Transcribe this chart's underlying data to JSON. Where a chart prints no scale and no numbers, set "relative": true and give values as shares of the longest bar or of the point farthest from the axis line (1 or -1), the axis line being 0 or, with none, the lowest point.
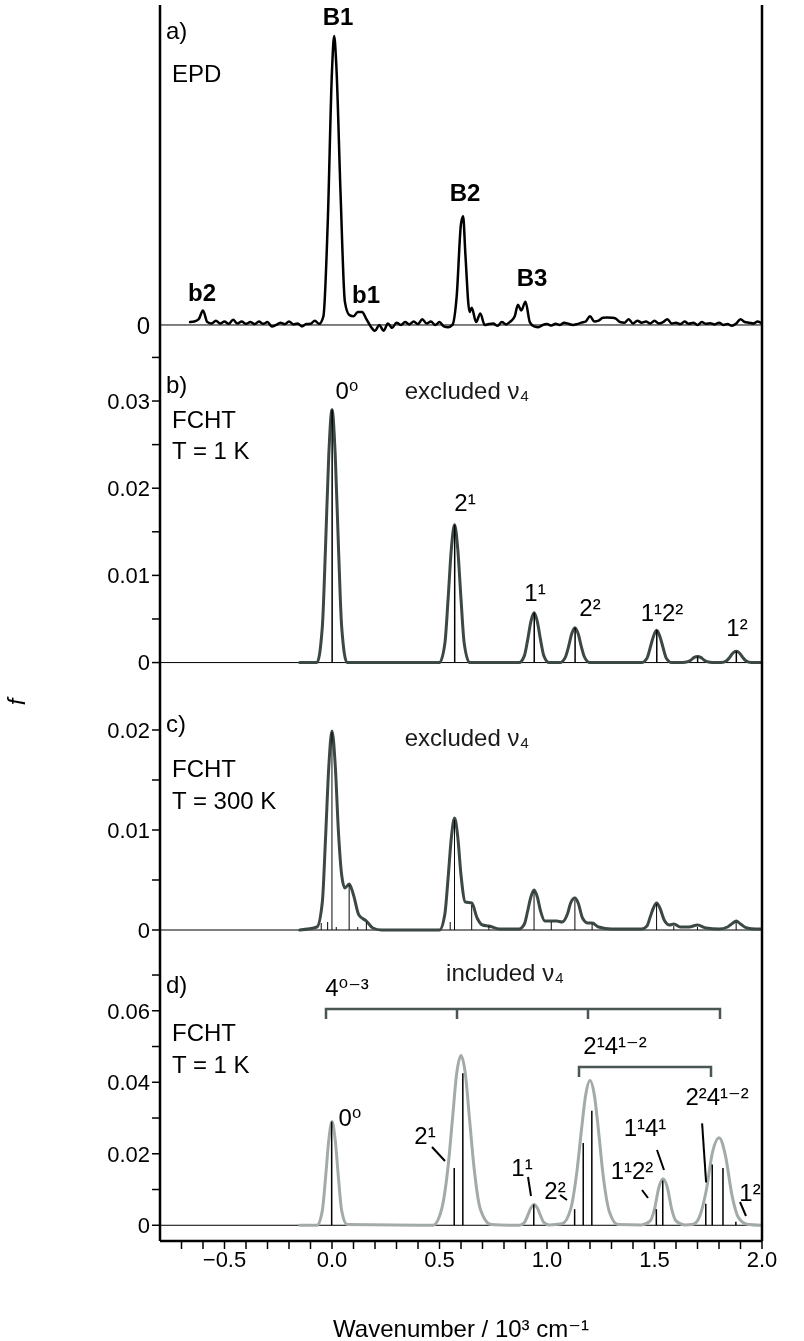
{
  "chart_data": [
    {
      "type": "line",
      "relative": true,
      "xlim": [
        -0.8,
        2.0
      ],
      "tick_labels": false,
      "annotations": [
        "a)",
        "EPD",
        "0",
        "B1",
        "B2",
        "B3",
        "b2",
        "b1"
      ],
      "ref_lines": [
        {
          "axis": "y",
          "value": 0
        }
      ],
      "series": [
        {
          "color": "#000000",
          "x": [
            -0.66,
            -0.64,
            -0.62,
            -0.6,
            -0.58,
            -0.56,
            -0.54,
            -0.52,
            -0.5,
            -0.48,
            -0.46,
            -0.44,
            -0.42,
            -0.4,
            -0.38,
            -0.36,
            -0.34,
            -0.32,
            -0.3,
            -0.28,
            -0.26,
            -0.24,
            -0.22,
            -0.2,
            -0.18,
            -0.16,
            -0.14,
            -0.12,
            -0.1,
            -0.08,
            -0.06,
            -0.04,
            -0.02,
            0,
            0.01,
            0.02,
            0.04,
            0.06,
            0.08,
            0.1,
            0.12,
            0.14,
            0.16,
            0.18,
            0.2,
            0.22,
            0.24,
            0.26,
            0.28,
            0.3,
            0.32,
            0.34,
            0.36,
            0.38,
            0.4,
            0.42,
            0.44,
            0.46,
            0.48,
            0.5,
            0.52,
            0.54,
            0.56,
            0.58,
            0.6,
            0.61,
            0.62,
            0.64,
            0.65,
            0.67,
            0.69,
            0.71,
            0.73,
            0.75,
            0.77,
            0.79,
            0.81,
            0.83,
            0.85,
            0.865,
            0.88,
            0.9,
            0.92,
            0.94,
            0.96,
            0.98,
            1.0,
            1.02,
            1.04,
            1.06,
            1.08,
            1.1,
            1.12,
            1.14,
            1.16,
            1.18,
            1.2,
            1.22,
            1.24,
            1.26,
            1.28,
            1.3,
            1.32,
            1.34,
            1.36,
            1.38,
            1.4,
            1.42,
            1.44,
            1.46,
            1.48,
            1.5,
            1.52,
            1.54,
            1.56,
            1.58,
            1.6,
            1.62,
            1.64,
            1.66,
            1.68,
            1.7,
            1.72,
            1.74,
            1.76,
            1.78,
            1.8,
            1.82,
            1.84,
            1.86,
            1.88,
            1.9,
            1.92,
            1.94,
            1.96,
            1.98,
            2.0
          ],
          "values": [
            0.01,
            0.012,
            0.02,
            0.05,
            0.01,
            0.005,
            0.015,
            0.005,
            0.012,
            0.004,
            0.018,
            0.005,
            0.012,
            0.004,
            0.01,
            0.003,
            0.012,
            0.004,
            0.01,
            -0.005,
            0.0,
            0.008,
            0.003,
            0.012,
            0.002,
            0.005,
            -0.005,
            0.003,
            0.004,
            0.015,
            0.004,
            0.03,
            0.35,
            0.88,
            1.0,
            0.9,
            0.45,
            0.08,
            0.035,
            0.03,
            0.045,
            0.045,
            0.02,
            -0.005,
            -0.02,
            0.0,
            -0.02,
            0.005,
            -0.01,
            0.008,
            0.0,
            0.01,
            0.002,
            0.012,
            0.003,
            0.02,
            0.005,
            0.012,
            0.0,
            0.01,
            -0.005,
            -0.008,
            0.0,
            0.1,
            0.35,
            0.376,
            0.25,
            0.045,
            0.06,
            0.01,
            0.04,
            0.0,
            0.003,
            0.005,
            -0.003,
            0.01,
            0.002,
            0.012,
            0.03,
            0.07,
            0.05,
            0.08,
            0.01,
            -0.005,
            -0.008,
            0.0,
            0.003,
            -0.002,
            0.004,
            0.0,
            0.008,
            0.004,
            0.0,
            0.003,
            0.008,
            0.012,
            0.03,
            0.012,
            0.015,
            0.025,
            0.026,
            0.025,
            0.022,
            0.01,
            0.008,
            0.02,
            0.005,
            0.015,
            0.008,
            0.012,
            0.005,
            0.015,
            0.005,
            0.01,
            0.02,
            0.005,
            0.008,
            0.003,
            0.012,
            0.004,
            0.008,
            0.0,
            0.01,
            0.004,
            0.006,
            0.002,
            0.008,
            0.0,
            0.003,
            -0.003,
            0.005,
            0.02,
            0.01,
            0.008,
            0.005,
            0.012,
            0.005
          ]
        }
      ]
    },
    {
      "type": "line",
      "title": "excluded ν₄",
      "xlim": [
        -0.8,
        2.0
      ],
      "ylim": [
        -0.002,
        0.037
      ],
      "yticks": [
        0,
        {
          "value": 0.005,
          "label": null
        },
        0.01,
        {
          "value": 0.015,
          "label": null
        },
        0.02,
        {
          "value": 0.025,
          "label": null
        },
        0.03,
        {
          "value": 0.035,
          "label": null
        }
      ],
      "tick_labels": "y",
      "annotations": [
        "b)",
        "FCHT",
        "T = 1 K",
        "0⁰",
        "2¹",
        "1¹",
        "2²",
        "1¹2²",
        "1²"
      ],
      "ref_lines": [
        {
          "axis": "y",
          "value": 0
        }
      ],
      "series": [
        {
          "color": "#3c4846",
          "x": [
            -0.15,
            -0.07,
            -0.045,
            -0.03,
            -0.015,
            0,
            0.015,
            0.03,
            0.045,
            0.07,
            0.5,
            0.525,
            0.54,
            0.555,
            0.57,
            0.585,
            0.6,
            0.615,
            0.64,
            0.87,
            0.895,
            0.91,
            0.925,
            0.94,
            0.955,
            0.97,
            0.985,
            1.01,
            1.06,
            1.085,
            1.1,
            1.115,
            1.13,
            1.145,
            1.16,
            1.175,
            1.2,
            1.44,
            1.465,
            1.48,
            1.495,
            1.51,
            1.525,
            1.54,
            1.555,
            1.58,
            1.63,
            1.655,
            1.67,
            1.685,
            1.7,
            1.715,
            1.73,
            1.745,
            1.77,
            1.81,
            1.835,
            1.85,
            1.865,
            1.88,
            1.895,
            1.91,
            1.925,
            1.95,
            2.0
          ],
          "values": [
            0,
            0,
            0.0041,
            0.0133,
            0.0238,
            0.029,
            0.0238,
            0.0133,
            0.0041,
            0,
            0,
            0.0022,
            0.0073,
            0.013,
            0.0158,
            0.013,
            0.0073,
            0.0022,
            0,
            0,
            0.0008,
            0.0026,
            0.0047,
            0.0057,
            0.0047,
            0.0026,
            0.0008,
            0,
            0,
            0.0006,
            0.0018,
            0.0033,
            0.004,
            0.0033,
            0.0018,
            0.0006,
            0,
            0,
            0.0005,
            0.0017,
            0.003,
            0.0037,
            0.003,
            0.0017,
            0.0005,
            0,
            0,
            0.0001,
            0.0003,
            0.0006,
            0.0007,
            0.0006,
            0.0003,
            0.0001,
            0,
            0,
            0.0002,
            0.0006,
            0.0011,
            0.0013,
            0.0011,
            0.0006,
            0.0002,
            0,
            0
          ]
        },
        {
          "type": "bar",
          "color": "#000000",
          "x": [
            0,
            0.57,
            0.94,
            1.13,
            1.51,
            1.7,
            1.88
          ],
          "values": [
            0.029,
            0.0158,
            0.0057,
            0.004,
            0.0037,
            0.0007,
            0.0013
          ]
        }
      ]
    },
    {
      "type": "line",
      "title": "excluded ν₄",
      "ylabel": "f",
      "xlim": [
        -0.8,
        2.0
      ],
      "ylim": [
        -0.002,
        0.025
      ],
      "yticks": [
        0,
        {
          "value": 0.005,
          "label": null
        },
        0.01,
        {
          "value": 0.015,
          "label": null
        },
        0.02
      ],
      "tick_labels": "y",
      "annotations": [
        "c)",
        "FCHT",
        "T = 300 K"
      ],
      "ref_lines": [
        {
          "axis": "y",
          "value": 0
        }
      ],
      "series": [
        {
          "color": "#3c4846",
          "x": [
            -0.15,
            -0.07,
            -0.045,
            -0.03,
            -0.015,
            0,
            0.015,
            0.03,
            0.045,
            0.06,
            0.08,
            0.1,
            0.125,
            0.16,
            0.19,
            0.23,
            0.5,
            0.525,
            0.54,
            0.555,
            0.57,
            0.585,
            0.6,
            0.62,
            0.65,
            0.675,
            0.7,
            0.73,
            0.78,
            0.87,
            0.895,
            0.91,
            0.925,
            0.94,
            0.955,
            0.97,
            0.99,
            1.02,
            1.045,
            1.07,
            1.095,
            1.11,
            1.13,
            1.145,
            1.165,
            1.19,
            1.21,
            1.24,
            1.3,
            1.44,
            1.465,
            1.48,
            1.495,
            1.51,
            1.525,
            1.545,
            1.57,
            1.59,
            1.62,
            1.66,
            1.7,
            1.74,
            1.8,
            1.84,
            1.865,
            1.88,
            1.9,
            1.93,
            1.97,
            2.0
          ],
          "values": [
            0,
            0.0003,
            0.0028,
            0.0092,
            0.0163,
            0.0199,
            0.0165,
            0.0098,
            0.0055,
            0.0042,
            0.0046,
            0.0035,
            0.0015,
            0.0009,
            0.0002,
            0,
            0,
            0.0016,
            0.0052,
            0.0092,
            0.0112,
            0.0093,
            0.0055,
            0.0028,
            0.0027,
            0.0012,
            0.0005,
            0.0004,
            0.0001,
            0.0001,
            0.0006,
            0.0019,
            0.0033,
            0.004,
            0.0033,
            0.0019,
            0.0009,
            0.0009,
            0.0009,
            0.0008,
            0.0016,
            0.0027,
            0.0032,
            0.0027,
            0.0012,
            0.0007,
            0.0007,
            0.0003,
            0.0001,
            0.0001,
            0.0004,
            0.0013,
            0.0022,
            0.0027,
            0.0022,
            0.001,
            0.0005,
            0.0006,
            0.0003,
            0.0003,
            0.0005,
            0.0002,
            0.0001,
            0.0003,
            0.0007,
            0.0009,
            0.0006,
            0.0002,
            0.0001,
            0.0001
          ]
        },
        {
          "type": "bar",
          "color": "#000000",
          "x": [
            -0.05,
            -0.02,
            0,
            0.02,
            0.08,
            0.12,
            0.16,
            0.55,
            0.57,
            0.65,
            0.73,
            0.94,
            1.02,
            1.13,
            1.21,
            1.51,
            1.59,
            1.7,
            1.88
          ],
          "values": [
            0.0007,
            0.0008,
            0.0198,
            0.0003,
            0.0045,
            0.0003,
            0.0008,
            0.0008,
            0.011,
            0.0025,
            0.0004,
            0.0038,
            0.0008,
            0.003,
            0.0006,
            0.0026,
            0.0004,
            0.0003,
            0.0008
          ]
        }
      ]
    },
    {
      "type": "line",
      "title": "included ν₄",
      "xlabel": "Wavenumber / 10³ cm⁻¹",
      "xlim": [
        -0.8,
        2.0
      ],
      "ylim": [
        -0.0044,
        0.077
      ],
      "xticks": [
        {
          "value": -0.7,
          "label": null
        },
        {
          "value": -0.6,
          "label": null
        },
        {
          "value": -0.5,
          "label": "−0.5"
        },
        {
          "value": -0.4,
          "label": null
        },
        {
          "value": -0.3,
          "label": null
        },
        {
          "value": -0.2,
          "label": null
        },
        {
          "value": -0.1,
          "label": null
        },
        {
          "value": 0,
          "label": "0.0"
        },
        {
          "value": 0.1,
          "label": null
        },
        {
          "value": 0.2,
          "label": null
        },
        {
          "value": 0.3,
          "label": null
        },
        {
          "value": 0.4,
          "label": null
        },
        0.5,
        {
          "value": 0.6,
          "label": null
        },
        {
          "value": 0.7,
          "label": null
        },
        {
          "value": 0.8,
          "label": null
        },
        {
          "value": 0.9,
          "label": null
        },
        {
          "value": 1.0,
          "label": "1.0"
        },
        {
          "value": 1.1,
          "label": null
        },
        {
          "value": 1.2,
          "label": null
        },
        {
          "value": 1.3,
          "label": null
        },
        {
          "value": 1.4,
          "label": null
        },
        1.5,
        {
          "value": 1.6,
          "label": null
        },
        {
          "value": 1.7,
          "label": null
        },
        {
          "value": 1.8,
          "label": null
        },
        {
          "value": 1.9,
          "label": null
        },
        {
          "value": 2.0,
          "label": "2.0"
        }
      ],
      "yticks": [
        0,
        {
          "value": 0.01,
          "label": null
        },
        0.02,
        {
          "value": 0.03,
          "label": null
        },
        0.04,
        {
          "value": 0.05,
          "label": null
        },
        0.06,
        {
          "value": 0.07,
          "label": null
        }
      ],
      "annotations": [
        "d)",
        "FCHT",
        "T = 1 K",
        "4⁰⁻³",
        "2¹4¹⁻²",
        "0⁰",
        "2¹",
        "1¹",
        "2²",
        "1¹2²",
        "1¹4¹",
        {
          "text": "2²4¹⁻²",
          "x": 1.74,
          "y": 0.012
        },
        "1²"
      ],
      "ref_lines": [
        {
          "axis": "y",
          "value": 0
        }
      ],
      "series": [
        {
          "color": "#a3aba9",
          "x": [
            -0.15,
            -0.07,
            -0.045,
            -0.03,
            -0.015,
            0,
            0.015,
            0.03,
            0.045,
            0.07,
            0.47,
            0.51,
            0.54,
            0.56,
            0.58,
            0.6,
            0.62,
            0.64,
            0.66,
            0.69,
            0.74,
            0.87,
            0.895,
            0.91,
            0.925,
            0.94,
            0.955,
            0.97,
            0.985,
            1.01,
            1.07,
            1.11,
            1.14,
            1.16,
            1.18,
            1.2,
            1.22,
            1.24,
            1.26,
            1.29,
            1.33,
            1.44,
            1.48,
            1.5,
            1.52,
            1.54,
            1.56,
            1.58,
            1.6,
            1.64,
            1.68,
            1.71,
            1.74,
            1.77,
            1.8,
            1.83,
            1.86,
            1.89,
            1.93,
            2.0
          ],
          "values": [
            0,
            0,
            0.0041,
            0.0133,
            0.0238,
            0.029,
            0.0238,
            0.0133,
            0.0041,
            0.0002,
            0,
            0.0045,
            0.0165,
            0.0295,
            0.0425,
            0.0475,
            0.0425,
            0.0295,
            0.0165,
            0.0045,
            0.0002,
            0,
            0.0008,
            0.0027,
            0.0048,
            0.0058,
            0.0048,
            0.0027,
            0.0008,
            0.0001,
            0.0004,
            0.0045,
            0.0155,
            0.0265,
            0.0365,
            0.0405,
            0.0365,
            0.0262,
            0.0145,
            0.0038,
            0.0002,
            0.0001,
            0.0012,
            0.0045,
            0.0105,
            0.013,
            0.0105,
            0.0045,
            0.0012,
            0.0001,
            0.0003,
            0.0025,
            0.0095,
            0.0205,
            0.0245,
            0.0195,
            0.0085,
            0.0022,
            0.0003,
            0
          ]
        },
        {
          "type": "bar",
          "color": "#000000",
          "x": [
            0,
            0.57,
            0.61,
            0.94,
            1.13,
            1.17,
            1.21,
            1.51,
            1.54,
            1.74,
            1.77,
            1.82,
            1.88
          ],
          "values": [
            0.029,
            0.016,
            0.0425,
            0.0058,
            0.0045,
            0.023,
            0.032,
            0.0045,
            0.0125,
            0.006,
            0.017,
            0.016,
            0.001
          ]
        }
      ]
    }
  ]
}
